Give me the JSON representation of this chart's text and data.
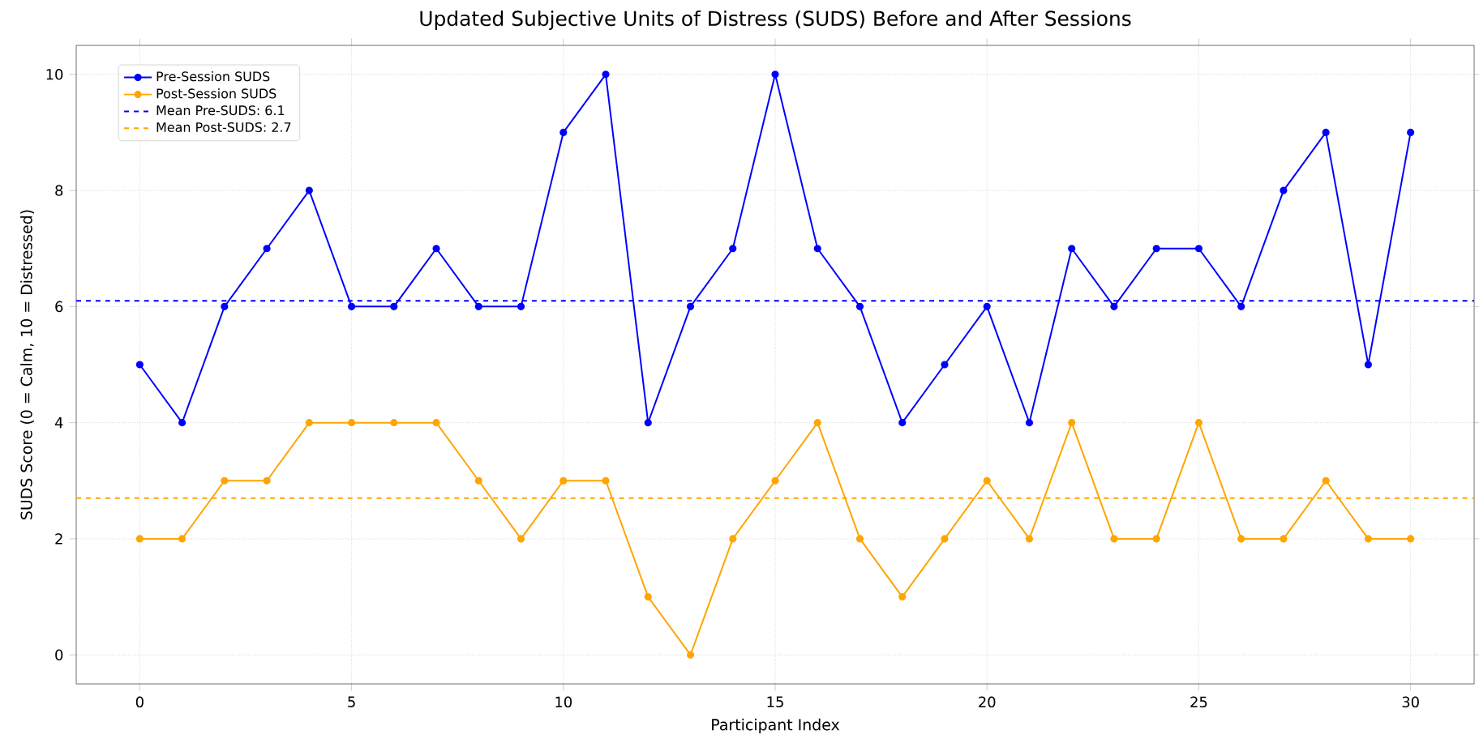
{
  "chart_data": {
    "type": "line",
    "title": "Updated Subjective Units of Distress (SUDS) Before and After Sessions",
    "xlabel": "Participant Index",
    "ylabel": "SUDS Score (0 = Calm, 10 = Distressed)",
    "x": [
      0,
      1,
      2,
      3,
      4,
      5,
      6,
      7,
      8,
      9,
      10,
      11,
      12,
      13,
      14,
      15,
      16,
      17,
      18,
      19,
      20,
      21,
      22,
      23,
      24,
      25,
      26,
      27,
      28,
      29,
      30
    ],
    "series": [
      {
        "name": "Pre-Session SUDS",
        "color": "#0000ff",
        "values": [
          5,
          4,
          6,
          7,
          8,
          6,
          6,
          7,
          6,
          6,
          9,
          10,
          4,
          6,
          7,
          10,
          7,
          6,
          4,
          5,
          6,
          4,
          7,
          6,
          7,
          7,
          6,
          8,
          9,
          5,
          9
        ]
      },
      {
        "name": "Post-Session SUDS",
        "color": "#ffa500",
        "values": [
          2,
          2,
          3,
          3,
          4,
          4,
          4,
          4,
          3,
          2,
          3,
          3,
          1,
          0,
          2,
          3,
          4,
          2,
          1,
          2,
          3,
          2,
          4,
          2,
          2,
          4,
          2,
          2,
          3,
          2,
          2
        ]
      }
    ],
    "ref_lines": [
      {
        "axis": "y",
        "value": 6.1,
        "label": "Mean Pre-SUDS: 6.1",
        "color": "#0000ff",
        "line_style": "dashed"
      },
      {
        "axis": "y",
        "value": 2.7,
        "label": "Mean Post-SUDS: 2.7",
        "color": "#ffa500",
        "line_style": "dashed"
      }
    ],
    "xlim": [
      -1.5,
      31.5
    ],
    "ylim": [
      -0.5,
      10.5
    ],
    "xticks": [
      0,
      5,
      10,
      15,
      20,
      25,
      30
    ],
    "yticks": [
      0,
      2,
      4,
      6,
      8,
      10
    ],
    "grid": true,
    "legend": "top left",
    "marker": "circle",
    "line_style": "solid"
  }
}
